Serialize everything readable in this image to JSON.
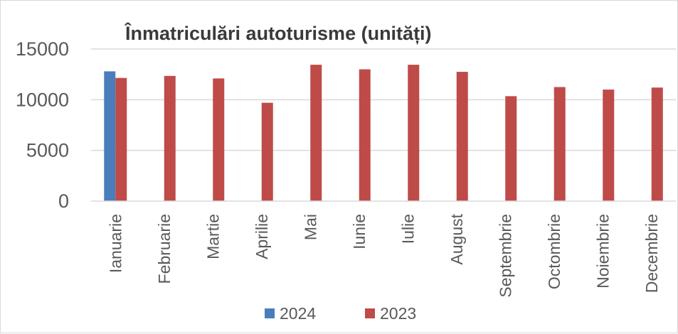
{
  "chart_data": {
    "type": "bar",
    "title": "Înmatriculări autoturisme (unități)",
    "categories": [
      "Ianuarie",
      "Februarie",
      "Martie",
      "Aprilie",
      "Mai",
      "Iunie",
      "Iulie",
      "August",
      "Septembrie",
      "Octombrie",
      "Noiembrie",
      "Decembrie"
    ],
    "series": [
      {
        "name": "2024",
        "color": "#4a7ebb",
        "values": [
          12800,
          null,
          null,
          null,
          null,
          null,
          null,
          null,
          null,
          null,
          null,
          null
        ]
      },
      {
        "name": "2023",
        "color": "#be4b48",
        "values": [
          12150,
          12350,
          12100,
          9700,
          13450,
          13000,
          13450,
          12750,
          10350,
          11250,
          11000,
          11200
        ]
      }
    ],
    "y_ticks": [
      "0",
      "5000",
      "10000",
      "15000"
    ],
    "ylim": [
      0,
      15000
    ],
    "grid": true,
    "legend_position": "bottom"
  }
}
